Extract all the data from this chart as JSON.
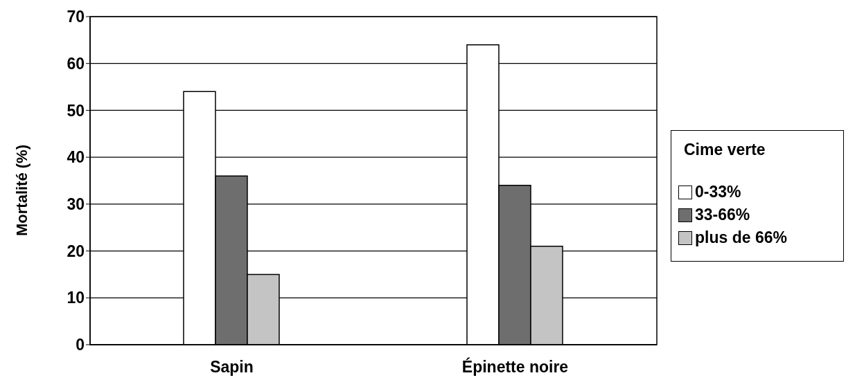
{
  "chart_data": {
    "type": "bar",
    "ylabel": "Mortalité (%)",
    "legend_title": "Cime verte",
    "categories": [
      "Sapin",
      "Épinette noire"
    ],
    "series": [
      {
        "name": "0-33%",
        "color": "#ffffff",
        "values": [
          54,
          64
        ]
      },
      {
        "name": "33-66%",
        "color": "#6e6e6e",
        "values": [
          36,
          34
        ]
      },
      {
        "name": "plus de 66%",
        "color": "#c4c4c4",
        "values": [
          15,
          21
        ]
      }
    ],
    "ylim": [
      0,
      70
    ],
    "yticks": [
      0,
      10,
      20,
      30,
      40,
      50,
      60,
      70
    ],
    "grid": "y",
    "legend": "right"
  }
}
